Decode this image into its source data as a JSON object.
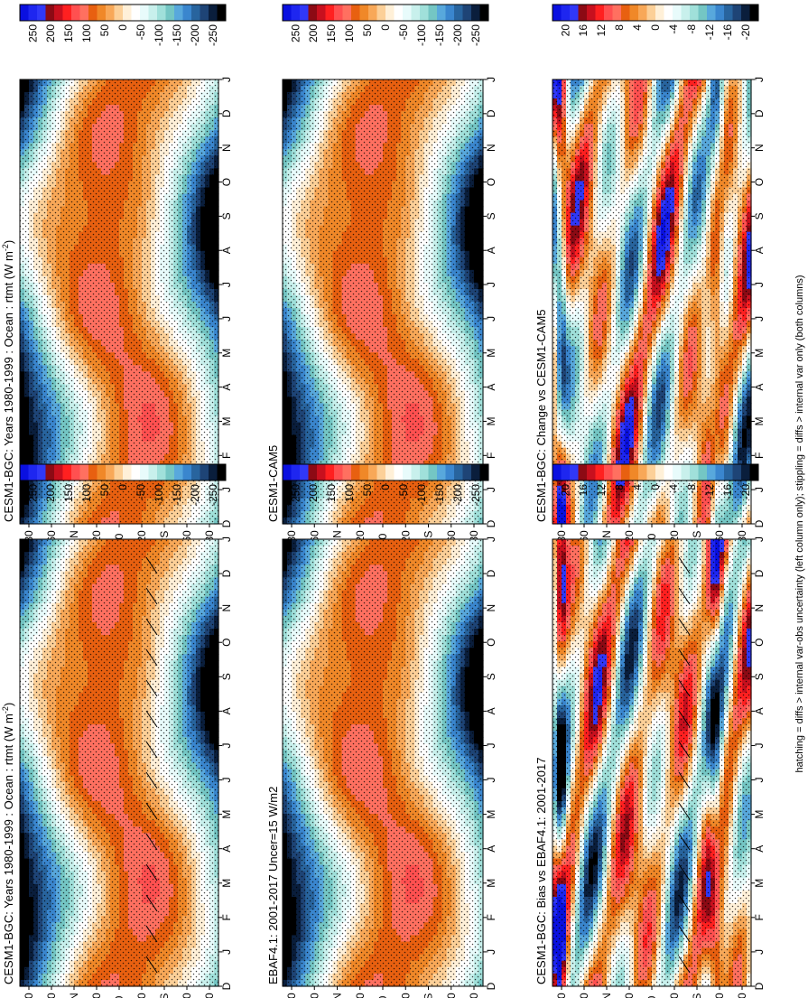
{
  "footnote": "hatching = diffs > internal var-obs uncertainty (left column only); stippling = diffs > internal var only (both columns)",
  "time_labels": [
    "D",
    "J",
    "F",
    "M",
    "A",
    "M",
    "J",
    "J",
    "A",
    "S",
    "O",
    "N",
    "D",
    "J"
  ],
  "lat_labels": [
    "80",
    "60",
    "°N",
    "20",
    "0",
    "20",
    "°S",
    "60",
    "80"
  ],
  "palette_main": [
    "#0a10e0",
    "#1e26f0",
    "#3038f8",
    "#8c0a14",
    "#c8101e",
    "#ff2020",
    "#ff5050",
    "#ff7060",
    "#e86010",
    "#f08828",
    "#f8a858",
    "#fcd098",
    "#fff0d8",
    "#ffffff",
    "#e8fbfb",
    "#c8f0ec",
    "#a0e0da",
    "#74c6c4",
    "#58a8dc",
    "#3a86ce",
    "#28649e",
    "#1e4476",
    "#0a1e3c",
    "#000000"
  ],
  "palette_diff": [
    "#0a10e0",
    "#1e26f0",
    "#3038f8",
    "#8c0a14",
    "#c8101e",
    "#ff2020",
    "#ff5050",
    "#ff7060",
    "#e86010",
    "#f08828",
    "#f8a858",
    "#fcd098",
    "#fff0d8",
    "#ffffff",
    "#e8fbfb",
    "#c8f0ec",
    "#a0e0da",
    "#74c6c4",
    "#58a8dc",
    "#3a86ce",
    "#28649e",
    "#1e4476",
    "#0a1e3c",
    "#000000"
  ],
  "colorbar_main_ticks": [
    "250",
    "200",
    "150",
    "100",
    "50",
    "0",
    "-50",
    "-100",
    "-150",
    "-200",
    "-250"
  ],
  "colorbar_diff_ticks": [
    "20",
    "16",
    "12",
    "8",
    "4",
    "0",
    "-4",
    "-8",
    "-12",
    "-16",
    "-20"
  ],
  "chart_data": [
    {
      "type": "heatmap",
      "title": "CESM1-BGC: Years 1980-1999 : Ocean : rtmt (W m⁻²)",
      "title_main": "CESM1-BGC: Years 1980-1999 : Ocean : rtmt (W m",
      "title_sup": "-2",
      "title_close": ")",
      "x": "month (D to J)",
      "y": "latitude (80°N to 80°S)",
      "units": "W m-2",
      "colorbar_ticks": [
        250,
        200,
        150,
        100,
        50,
        0,
        -50,
        -100,
        -150,
        -200,
        -250
      ],
      "hatching": true
    },
    {
      "type": "heatmap",
      "title": "CESM1-BGC: Years 1980-1999 : Ocean : rtmt (W m⁻²)",
      "title_main": "CESM1-BGC: Years 1980-1999 : Ocean : rtmt (W m",
      "title_sup": "-2",
      "title_close": ")",
      "x": "month (D to J)",
      "y": "latitude (80°N to 80°S)",
      "units": "W m-2",
      "colorbar_ticks": [
        250,
        200,
        150,
        100,
        50,
        0,
        -50,
        -100,
        -150,
        -200,
        -250
      ],
      "hatching": false
    },
    {
      "type": "heatmap",
      "title": "EBAF4.1: 2001-2017 Uncer=15 W/m2",
      "x": "month (D to J)",
      "y": "latitude (80°N to 80°S)",
      "units": "W m-2",
      "colorbar_ticks": [
        250,
        200,
        150,
        100,
        50,
        0,
        -50,
        -100,
        -150,
        -200,
        -250
      ]
    },
    {
      "type": "heatmap",
      "title": "CESM1-CAM5",
      "x": "month (D to J)",
      "y": "latitude (80°N to 80°S)",
      "units": "W m-2",
      "colorbar_ticks": [
        250,
        200,
        150,
        100,
        50,
        0,
        -50,
        -100,
        -150,
        -200,
        -250
      ]
    },
    {
      "type": "heatmap",
      "title": "CESM1-BGC: Bias vs EBAF4.1: 2001-2017",
      "x": "month (D to J)",
      "y": "latitude (80°N to 80°S)",
      "units": "W m-2",
      "colorbar_ticks": [
        20,
        16,
        12,
        8,
        4,
        0,
        -4,
        -8,
        -12,
        -16,
        -20
      ]
    },
    {
      "type": "heatmap",
      "title": "CESM1-BGC: Change vs CESM1-CAM5",
      "x": "month (D to J)",
      "y": "latitude (80°N to 80°S)",
      "units": "W m-2",
      "colorbar_ticks": [
        20,
        16,
        12,
        8,
        4,
        0,
        -4,
        -8,
        -12,
        -16,
        -20
      ]
    }
  ]
}
